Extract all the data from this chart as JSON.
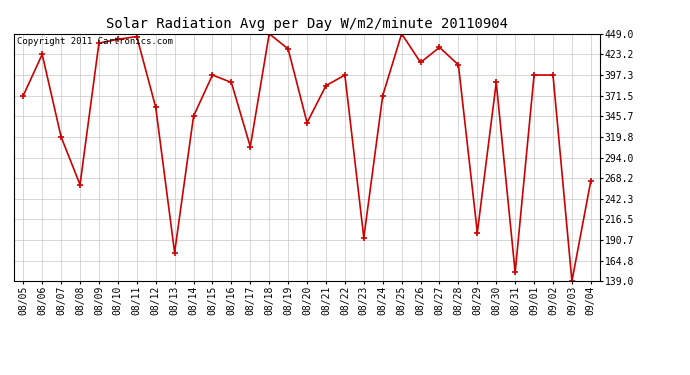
{
  "title": "Solar Radiation Avg per Day W/m2/minute 20110904",
  "copyright_text": "Copyright 2011 Cartronics.com",
  "dates": [
    "08/05",
    "08/06",
    "08/07",
    "08/08",
    "08/09",
    "08/10",
    "08/11",
    "08/12",
    "08/13",
    "08/14",
    "08/15",
    "08/16",
    "08/17",
    "08/18",
    "08/19",
    "08/20",
    "08/21",
    "08/22",
    "08/23",
    "08/24",
    "08/25",
    "08/26",
    "08/27",
    "08/28",
    "08/29",
    "08/30",
    "08/31",
    "09/01",
    "09/02",
    "09/03",
    "09/04"
  ],
  "values": [
    371.5,
    423.2,
    319.8,
    260.0,
    437.3,
    442.0,
    445.5,
    357.0,
    175.0,
    345.7,
    397.3,
    388.0,
    307.5,
    449.0,
    430.0,
    337.5,
    384.0,
    397.3,
    193.5,
    371.5,
    449.0,
    413.0,
    432.0,
    410.0,
    200.0,
    388.0,
    150.0,
    397.3,
    397.3,
    139.0,
    265.0
  ],
  "line_color": "#cc0000",
  "marker_color": "#cc0000",
  "bg_color": "#ffffff",
  "plot_bg_color": "#ffffff",
  "grid_color": "#c8c8c8",
  "ylim_min": 139.0,
  "ylim_max": 449.0,
  "yticks": [
    139.0,
    164.8,
    190.7,
    216.5,
    242.3,
    268.2,
    294.0,
    319.8,
    345.7,
    371.5,
    397.3,
    423.2,
    449.0
  ],
  "title_fontsize": 10,
  "tick_fontsize": 7,
  "copyright_fontsize": 6.5
}
